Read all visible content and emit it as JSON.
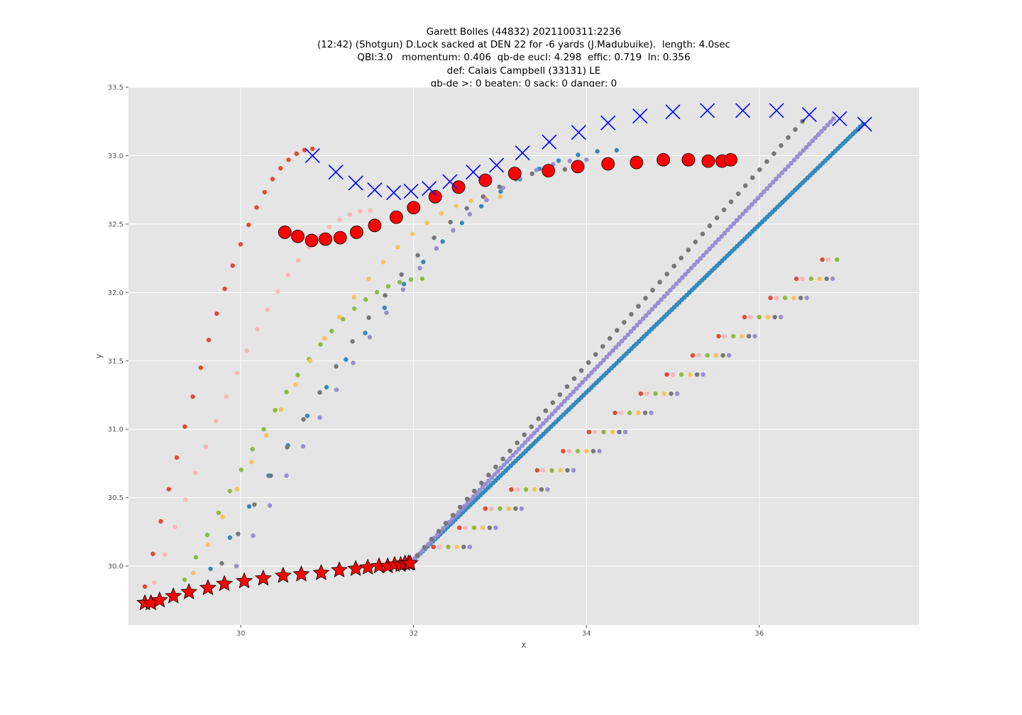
{
  "chart_data": {
    "type": "scatter",
    "title_lines": [
      "Garett Bolles (44832) 2021100311:2236",
      "(12:42) (Shotgun) D.Lock sacked at DEN 22 for -6 yards (J.Madubuike).  length: 4.0sec",
      "QBI:3.0   momentum: 0.406  qb-de eucl: 4.298  effic: 0.719  ln: 0.356",
      "def: Calais Campbell (33131) LE",
      "qb-de >: 0 beaten: 0 sack: 0 danger: 0"
    ],
    "xlabel": "x",
    "ylabel": "y",
    "xlim": [
      28.7,
      37.85
    ],
    "ylim": [
      29.57,
      33.5
    ],
    "xticks": [
      "30",
      "32",
      "34",
      "36"
    ],
    "yticks": [
      "30.0",
      "30.5",
      "31.0",
      "31.5",
      "32.0",
      "32.5",
      "33.0",
      "33.5"
    ],
    "grid": true,
    "background": "#e5e5e5",
    "style_colors": {
      "red": "#E24A33",
      "blue": "#348ABD",
      "purple": "#988ED5",
      "gray": "#777777",
      "yellow": "#FBC15E",
      "green": "#8EBA42",
      "pink": "#FFB5B8",
      "marker_red": "#ff0000",
      "marker_blue": "#0000ff"
    },
    "series": [
      {
        "marker": "star",
        "color": "#ff0000",
        "x": [
          28.89,
          28.96,
          29.06,
          29.22,
          29.4,
          29.62,
          29.81,
          30.04,
          30.26,
          30.49,
          30.7,
          30.93,
          31.14,
          31.33,
          31.47,
          31.6,
          31.7,
          31.78,
          31.85,
          31.9,
          31.94,
          31.96
        ],
        "y": [
          29.73,
          29.73,
          29.75,
          29.78,
          29.81,
          29.84,
          29.87,
          29.89,
          29.91,
          29.93,
          29.94,
          29.95,
          29.97,
          29.98,
          29.99,
          30.0,
          30.0,
          30.01,
          30.01,
          30.02,
          30.02,
          30.02
        ]
      },
      {
        "marker": "circle-large",
        "color": "#ff0000",
        "x": [
          30.51,
          30.66,
          30.82,
          30.98,
          31.15,
          31.34,
          31.55,
          31.8,
          32.0,
          32.25,
          32.52,
          32.83,
          33.17,
          33.56,
          33.9,
          34.25,
          34.58,
          34.89,
          35.18,
          35.41,
          35.57,
          35.67
        ],
        "y": [
          32.44,
          32.41,
          32.38,
          32.39,
          32.4,
          32.44,
          32.49,
          32.55,
          32.62,
          32.7,
          32.77,
          32.82,
          32.87,
          32.89,
          32.92,
          32.94,
          32.95,
          32.97,
          32.97,
          32.96,
          32.96,
          32.97
        ]
      },
      {
        "marker": "x",
        "color": "#0000ff",
        "x": [
          30.83,
          31.1,
          31.33,
          31.55,
          31.77,
          31.97,
          32.18,
          32.42,
          32.69,
          32.96,
          33.26,
          33.57,
          33.91,
          34.25,
          34.62,
          35.0,
          35.4,
          35.81,
          36.2,
          36.58,
          36.93,
          37.22
        ],
        "y": [
          33.0,
          32.88,
          32.8,
          32.75,
          32.73,
          32.74,
          32.76,
          32.81,
          32.88,
          32.93,
          33.02,
          33.1,
          33.17,
          33.24,
          33.29,
          33.32,
          33.33,
          33.33,
          33.33,
          33.3,
          33.27,
          33.23
        ]
      }
    ],
    "dot_tracks": [
      {
        "color": "#348ABD",
        "line": [
          [
            31.96,
            30.02
          ],
          [
            37.2,
            33.23
          ]
        ],
        "count": 180
      },
      {
        "color": "#988ED5",
        "line": [
          [
            31.96,
            30.02
          ],
          [
            36.86,
            33.27
          ]
        ],
        "count": 140
      },
      {
        "color": "#777777",
        "line": [
          [
            31.96,
            30.02
          ],
          [
            36.5,
            33.25
          ]
        ],
        "count": 55
      }
    ]
  }
}
